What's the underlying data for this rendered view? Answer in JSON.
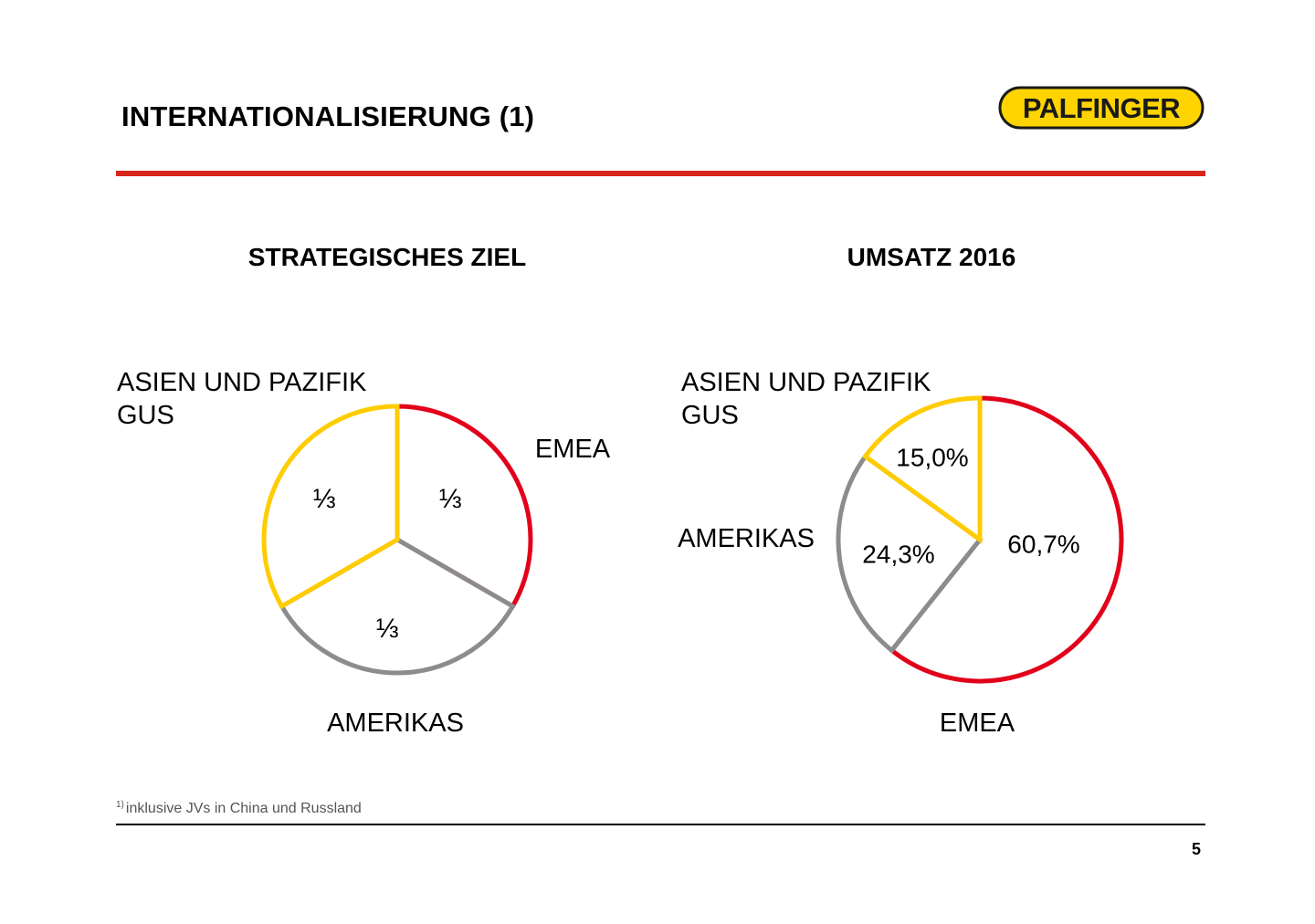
{
  "slide": {
    "title": "INTERNATIONALISIERUNG (1)",
    "logo_text": "PALFINGER",
    "footnote_marker": "1)",
    "footnote_text": "inklusive JVs in China und Russland",
    "page_number": "5"
  },
  "colors": {
    "red": "#e2001a",
    "yellow": "#ffcc00",
    "gray": "#8c8c8c",
    "logo_yellow": "#ffd400",
    "title_rule": "#d9261c",
    "footer_rule": "#000000"
  },
  "chart_data": [
    {
      "type": "pie",
      "title": "STRATEGISCHES ZIEL",
      "slices": [
        {
          "name": "EMEA",
          "value": 33.33,
          "value_label": "⅓",
          "color": "#e2001a"
        },
        {
          "name": "AMERIKAS",
          "value": 33.33,
          "value_label": "⅓",
          "color": "#8c8c8c"
        },
        {
          "name": "ASIEN UND PAZIFIK",
          "name_line2": "GUS",
          "value": 33.33,
          "value_label": "⅓",
          "color": "#ffcc00"
        }
      ]
    },
    {
      "type": "pie",
      "title": "UMSATZ 2016",
      "slices": [
        {
          "name": "EMEA",
          "value": 60.7,
          "value_label": "60,7%",
          "color": "#e2001a"
        },
        {
          "name": "AMERIKAS",
          "value": 24.3,
          "value_label": "24,3%",
          "color": "#8c8c8c"
        },
        {
          "name": "ASIEN UND PAZIFIK",
          "name_line2": "GUS",
          "value": 15.0,
          "value_label": "15,0%",
          "color": "#ffcc00"
        }
      ]
    }
  ]
}
